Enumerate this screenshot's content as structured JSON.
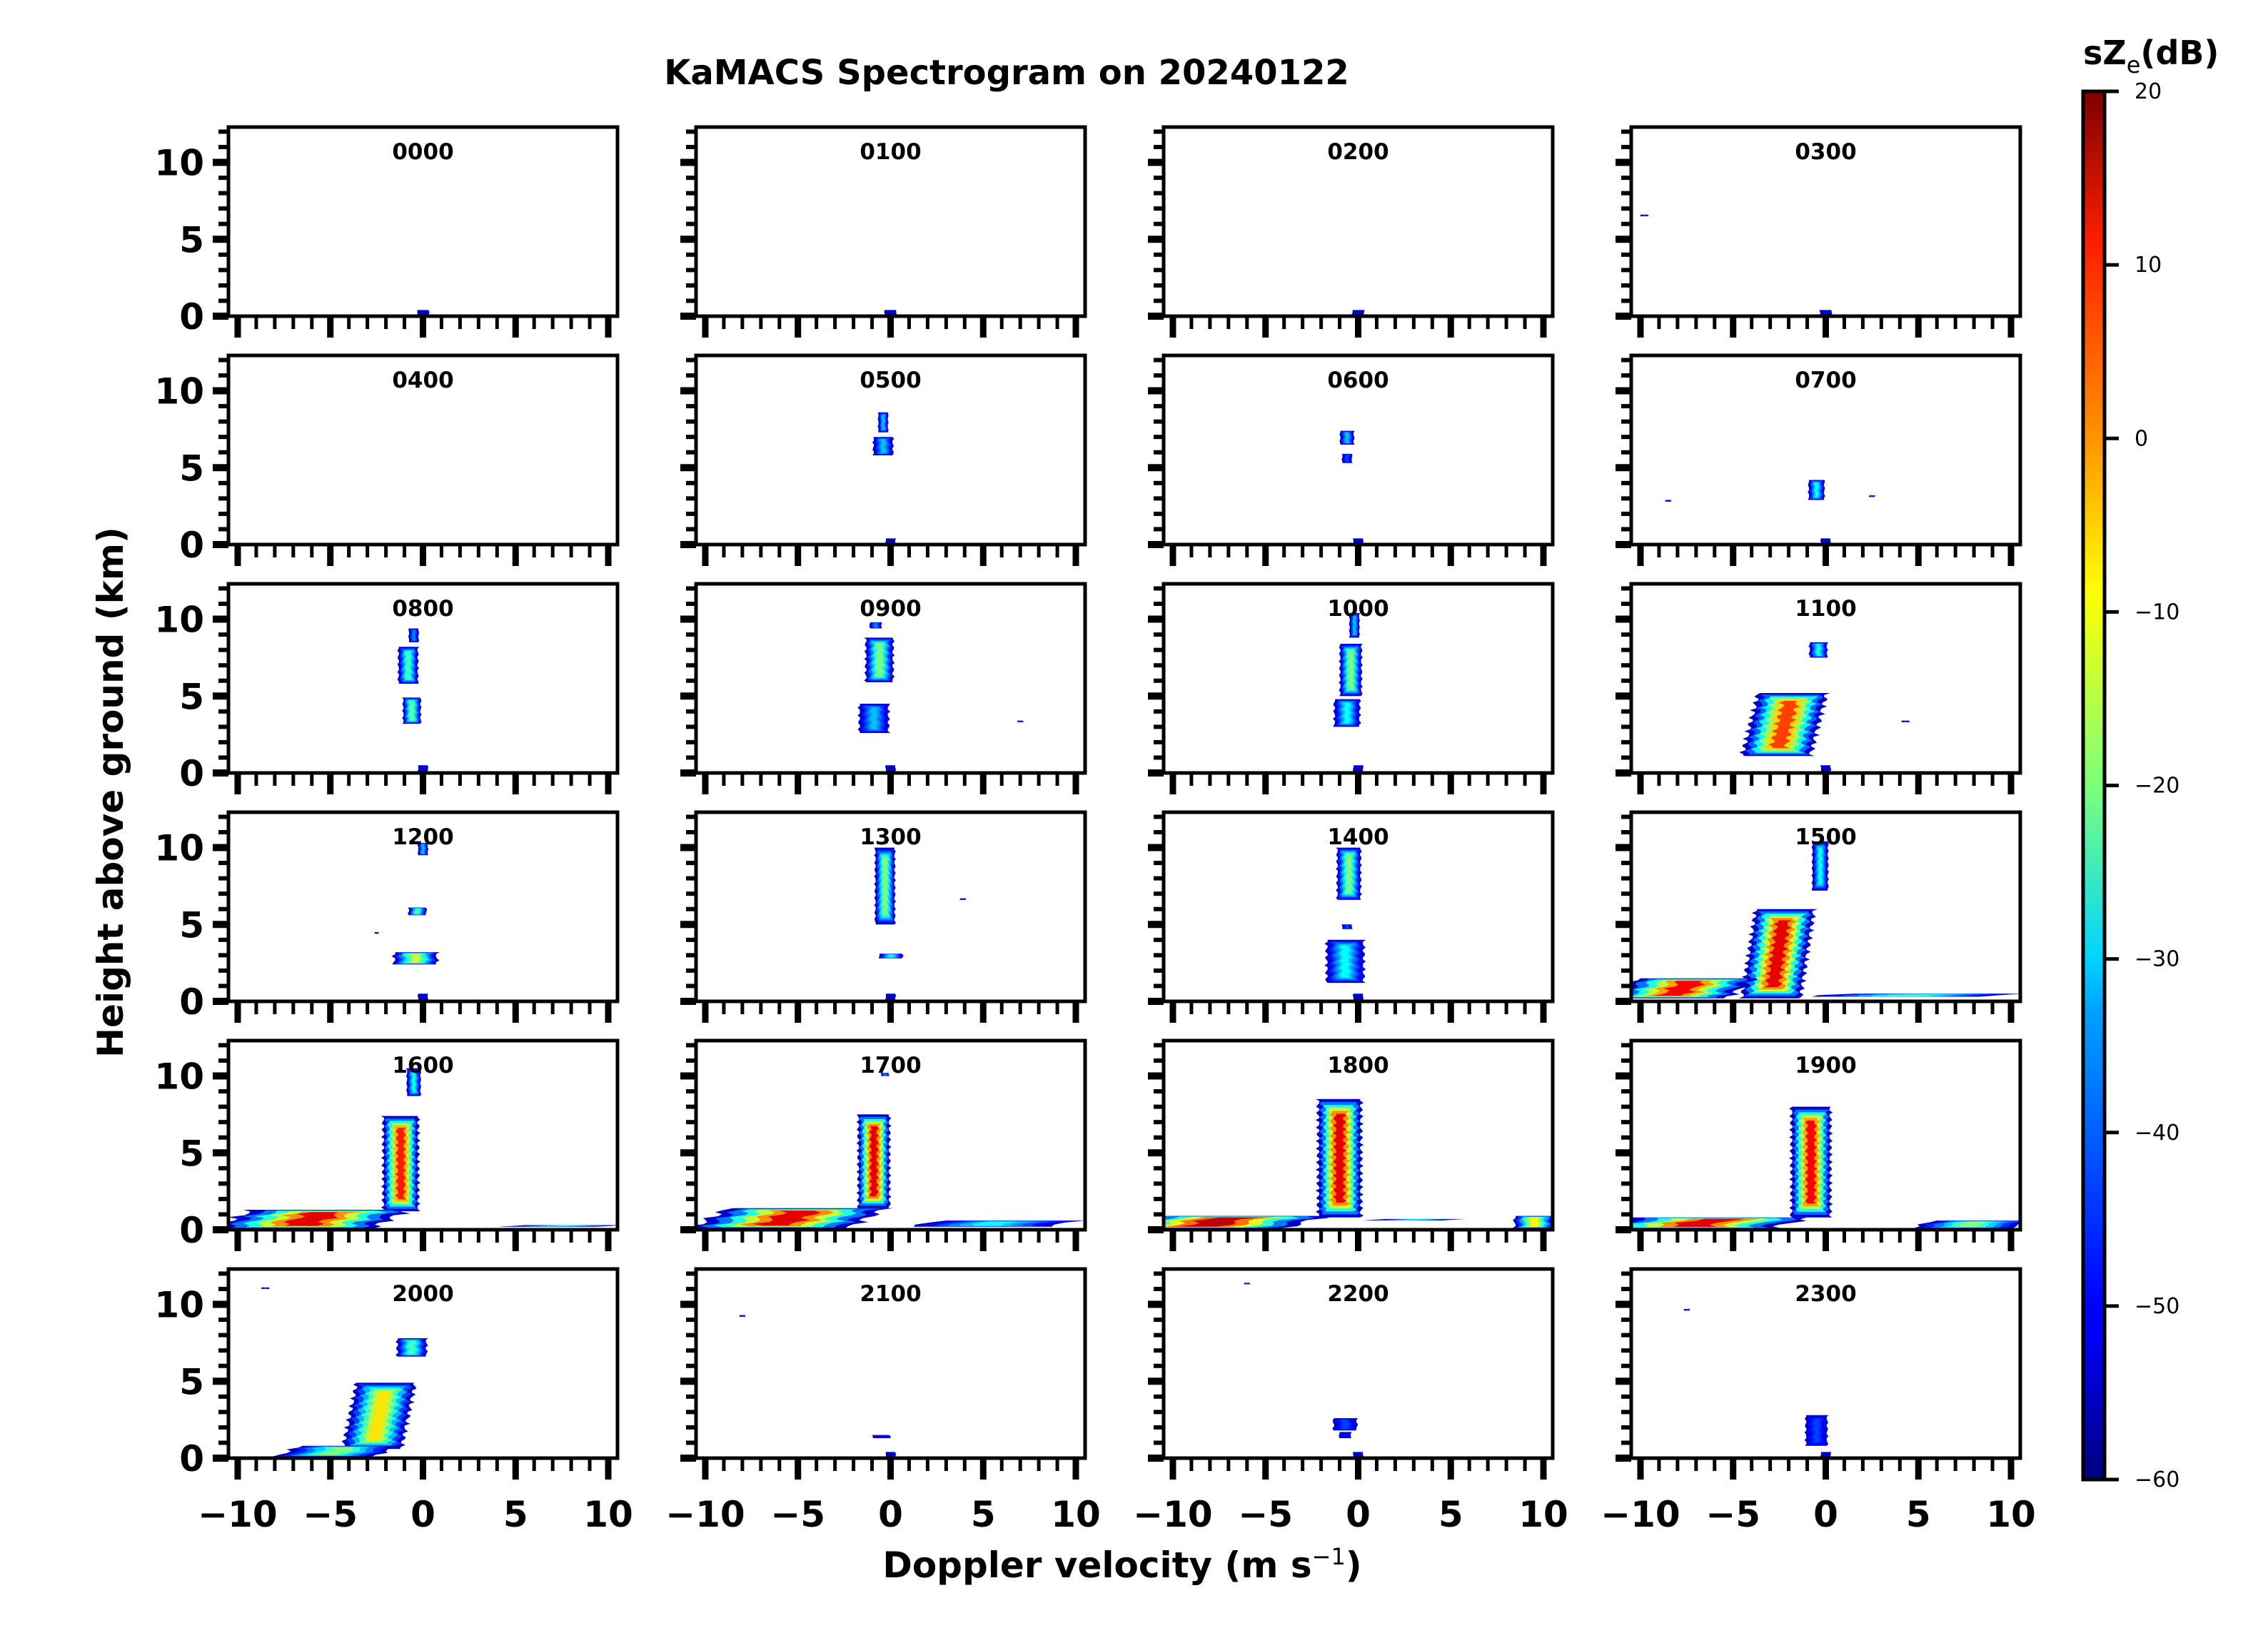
{
  "chart_data": {
    "type": "heatmap",
    "title": "KaMACS Spectrogram on 20240122",
    "xlabel": "Doppler velocity (m s⁻¹)",
    "xlabel_main": "Doppler velocity (m s",
    "xlabel_sup": "−1",
    "xlabel_close": ")",
    "ylabel": "Height above ground (km)",
    "xlim": [
      -10.5,
      10.5
    ],
    "ylim": [
      0,
      12.3
    ],
    "x_ticks": [
      -10,
      -5,
      0,
      5,
      10
    ],
    "x_tick_labels": [
      "−10",
      "−5",
      "0",
      "5",
      "10"
    ],
    "x_minor_step": 1,
    "y_ticks": [
      0,
      5,
      10
    ],
    "y_tick_labels": [
      "0",
      "5",
      "10"
    ],
    "y_minor_step": 1,
    "grid": false,
    "layout": {
      "rows": 6,
      "cols": 4
    },
    "colorbar": {
      "title_main": "sZ",
      "title_sub": "e",
      "title_unit": "(dB)",
      "colormap": "jet",
      "range": [
        -60,
        20
      ],
      "ticks": [
        20,
        10,
        0,
        -10,
        -20,
        -30,
        -40,
        -50,
        -60
      ],
      "tick_labels": [
        "20",
        "10",
        "0",
        "−10",
        "−20",
        "−30",
        "−40",
        "−50",
        "−60"
      ]
    },
    "panels": [
      {
        "time": "0000",
        "features": [
          {
            "h0": 0.1,
            "h1": 0.4,
            "v": 0,
            "w": 0.6,
            "dB": -55
          }
        ]
      },
      {
        "time": "0100",
        "features": [
          {
            "h0": 0.1,
            "h1": 0.4,
            "v": 0,
            "w": 0.6,
            "dB": -55
          }
        ]
      },
      {
        "time": "0200",
        "features": [
          {
            "h0": 0.1,
            "h1": 0.4,
            "v": 0,
            "w": 0.6,
            "dB": -55
          }
        ]
      },
      {
        "time": "0300",
        "features": [
          {
            "h0": 0.1,
            "h1": 0.4,
            "v": 0,
            "w": 0.6,
            "dB": -55
          },
          {
            "h0": 6.5,
            "h1": 6.6,
            "v": -9.8,
            "w": 0.4,
            "dB": -45
          }
        ]
      },
      {
        "time": "0400",
        "features": []
      },
      {
        "time": "0500",
        "features": [
          {
            "h0": 7.3,
            "h1": 8.6,
            "v": -0.4,
            "w": 0.5,
            "dB": -35
          },
          {
            "h0": 5.8,
            "h1": 7.0,
            "v": -0.4,
            "w": 1.0,
            "dB": -35
          },
          {
            "h0": 0.1,
            "h1": 0.4,
            "v": 0,
            "w": 0.5,
            "dB": -55
          }
        ]
      },
      {
        "time": "0600",
        "features": [
          {
            "h0": 6.5,
            "h1": 7.4,
            "v": -0.6,
            "w": 0.7,
            "dB": -35
          },
          {
            "h0": 5.3,
            "h1": 5.9,
            "v": -0.6,
            "w": 0.5,
            "dB": -45
          },
          {
            "h0": 0.1,
            "h1": 0.4,
            "v": 0,
            "w": 0.5,
            "dB": -55
          }
        ]
      },
      {
        "time": "0700",
        "features": [
          {
            "h0": 2.9,
            "h1": 4.2,
            "v": -0.5,
            "w": 0.8,
            "dB": -30
          },
          {
            "h0": 3.1,
            "h1": 3.2,
            "v": 2.5,
            "w": 0.3,
            "dB": -45
          },
          {
            "h0": 2.8,
            "h1": 2.9,
            "v": -8.5,
            "w": 0.3,
            "dB": -50
          },
          {
            "h0": 0.1,
            "h1": 0.4,
            "v": 0,
            "w": 0.5,
            "dB": -55
          }
        ]
      },
      {
        "time": "0800",
        "features": [
          {
            "h0": 5.8,
            "h1": 8.2,
            "v": -0.8,
            "w": 1.0,
            "dB": -25
          },
          {
            "h0": 8.5,
            "h1": 9.4,
            "v": -0.5,
            "w": 0.5,
            "dB": -40
          },
          {
            "h0": 3.2,
            "h1": 4.9,
            "v": -0.6,
            "w": 0.9,
            "dB": -22
          },
          {
            "h0": 0.1,
            "h1": 0.5,
            "v": 0,
            "w": 0.5,
            "dB": -55
          }
        ]
      },
      {
        "time": "0900",
        "features": [
          {
            "h0": 5.9,
            "h1": 8.8,
            "v": -0.6,
            "w": 1.4,
            "dB": -20
          },
          {
            "h0": 9.4,
            "h1": 9.8,
            "v": -0.8,
            "w": 0.6,
            "dB": -40
          },
          {
            "h0": 2.6,
            "h1": 4.5,
            "v": -0.9,
            "w": 1.5,
            "dB": -35
          },
          {
            "h0": 3.3,
            "h1": 3.4,
            "v": 7.0,
            "w": 0.3,
            "dB": -45
          },
          {
            "h0": 0.1,
            "h1": 0.5,
            "v": 0,
            "w": 0.5,
            "dB": -55
          }
        ]
      },
      {
        "time": "1000",
        "features": [
          {
            "h0": 5.0,
            "h1": 8.4,
            "v": -0.4,
            "w": 1.1,
            "dB": -20
          },
          {
            "h0": 8.8,
            "h1": 10.4,
            "v": -0.2,
            "w": 0.5,
            "dB": -35
          },
          {
            "h0": 3.0,
            "h1": 4.8,
            "v": -0.6,
            "w": 1.3,
            "dB": -30
          },
          {
            "h0": 0.1,
            "h1": 0.5,
            "v": 0,
            "w": 0.5,
            "dB": -55
          }
        ]
      },
      {
        "time": "1100",
        "features": [
          {
            "h0": 1.1,
            "h1": 5.2,
            "v": -1.8,
            "w": 3.5,
            "dB": 5
          },
          {
            "h0": 7.5,
            "h1": 8.5,
            "v": -0.4,
            "w": 0.9,
            "dB": -30
          },
          {
            "h0": 3.3,
            "h1": 3.4,
            "v": 4.3,
            "w": 0.4,
            "dB": -45
          },
          {
            "h0": 0.1,
            "h1": 0.5,
            "v": 0,
            "w": 0.5,
            "dB": -55
          }
        ]
      },
      {
        "time": "1200",
        "features": [
          {
            "h0": 2.4,
            "h1": 3.2,
            "v": -0.4,
            "w": 2.2,
            "dB": -15
          },
          {
            "h0": 5.6,
            "h1": 6.1,
            "v": -0.3,
            "w": 0.9,
            "dB": -25
          },
          {
            "h0": 9.5,
            "h1": 10.3,
            "v": 0,
            "w": 0.5,
            "dB": -35
          },
          {
            "h0": 4.4,
            "h1": 4.5,
            "v": -2.5,
            "w": 0.2,
            "dB": -55
          },
          {
            "h0": 0.1,
            "h1": 0.5,
            "v": 0,
            "w": 0.5,
            "dB": -55
          }
        ]
      },
      {
        "time": "1300",
        "features": [
          {
            "h0": 5.0,
            "h1": 10.0,
            "v": -0.3,
            "w": 1.0,
            "dB": -20
          },
          {
            "h0": 2.8,
            "h1": 3.1,
            "v": 0,
            "w": 1.2,
            "dB": -30
          },
          {
            "h0": 6.6,
            "h1": 6.7,
            "v": 3.9,
            "w": 0.3,
            "dB": -45
          },
          {
            "h0": 0.1,
            "h1": 0.5,
            "v": 0,
            "w": 0.5,
            "dB": -55
          }
        ]
      },
      {
        "time": "1400",
        "features": [
          {
            "h0": 6.6,
            "h1": 10.0,
            "v": -0.5,
            "w": 1.2,
            "dB": -20
          },
          {
            "h0": 1.2,
            "h1": 4.0,
            "v": -0.7,
            "w": 1.9,
            "dB": -30
          },
          {
            "h0": 4.7,
            "h1": 5.0,
            "v": -0.6,
            "w": 0.5,
            "dB": -45
          },
          {
            "h0": 0.1,
            "h1": 0.5,
            "v": 0,
            "w": 0.5,
            "dB": -55
          }
        ]
      },
      {
        "time": "1500",
        "features": [
          {
            "h0": 0.2,
            "h1": 6.0,
            "v": -2.2,
            "w": 3.0,
            "dB": 12
          },
          {
            "h0": 0.2,
            "h1": 1.5,
            "v": -7.0,
            "w": 6.0,
            "dB": 10
          },
          {
            "h0": 7.2,
            "h1": 10.4,
            "v": -0.3,
            "w": 0.8,
            "dB": -30
          },
          {
            "h0": 0.3,
            "h1": 0.5,
            "v": 6.0,
            "w": 9.0,
            "dB": -25
          }
        ]
      },
      {
        "time": "1600",
        "features": [
          {
            "h0": 1.2,
            "h1": 7.4,
            "v": -1.2,
            "w": 1.8,
            "dB": 8
          },
          {
            "h0": 0.1,
            "h1": 1.3,
            "v": -5.0,
            "w": 8.0,
            "dB": 12
          },
          {
            "h0": 8.7,
            "h1": 10.5,
            "v": -0.5,
            "w": 0.7,
            "dB": -30
          },
          {
            "h0": 0.2,
            "h1": 0.3,
            "v": 8.0,
            "w": 5.0,
            "dB": -30
          }
        ]
      },
      {
        "time": "1700",
        "features": [
          {
            "h0": 1.4,
            "h1": 7.5,
            "v": -0.9,
            "w": 1.6,
            "dB": 12
          },
          {
            "h0": 0.1,
            "h1": 1.4,
            "v": -4.5,
            "w": 8.0,
            "dB": 12
          },
          {
            "h0": 0.2,
            "h1": 0.6,
            "v": 6.5,
            "w": 7.0,
            "dB": -30
          },
          {
            "h0": 10.0,
            "h1": 10.2,
            "v": -0.3,
            "w": 0.4,
            "dB": -40
          }
        ]
      },
      {
        "time": "1800",
        "features": [
          {
            "h0": 0.8,
            "h1": 8.5,
            "v": -1.0,
            "w": 2.2,
            "dB": 12
          },
          {
            "h0": 0.1,
            "h1": 0.9,
            "v": -6.5,
            "w": 9.0,
            "dB": 15
          },
          {
            "h0": 0.1,
            "h1": 0.9,
            "v": 9.5,
            "w": 2.0,
            "dB": -10
          },
          {
            "h0": 0.6,
            "h1": 0.7,
            "v": 3.5,
            "w": 4.0,
            "dB": -30
          }
        ]
      },
      {
        "time": "1900",
        "features": [
          {
            "h0": 0.8,
            "h1": 8.0,
            "v": -0.8,
            "w": 2.0,
            "dB": 10
          },
          {
            "h0": 0.1,
            "h1": 0.8,
            "v": -5.5,
            "w": 9.0,
            "dB": 12
          },
          {
            "h0": 0.1,
            "h1": 0.6,
            "v": 8.5,
            "w": 5.0,
            "dB": -20
          }
        ]
      },
      {
        "time": "2000",
        "features": [
          {
            "h0": 0.6,
            "h1": 4.9,
            "v": -2.0,
            "w": 3.0,
            "dB": -8
          },
          {
            "h0": 0.1,
            "h1": 0.8,
            "v": -4.0,
            "w": 5.0,
            "dB": -20
          },
          {
            "h0": 6.6,
            "h1": 7.8,
            "v": -0.6,
            "w": 1.5,
            "dB": -25
          },
          {
            "h0": 11.0,
            "h1": 11.1,
            "v": -8.5,
            "w": 0.4,
            "dB": -45
          }
        ]
      },
      {
        "time": "2100",
        "features": [
          {
            "h0": 1.3,
            "h1": 1.5,
            "v": -0.5,
            "w": 0.9,
            "dB": -50
          },
          {
            "h0": 0.1,
            "h1": 0.4,
            "v": 0,
            "w": 0.5,
            "dB": -55
          },
          {
            "h0": 9.2,
            "h1": 9.3,
            "v": -8.0,
            "w": 0.3,
            "dB": -45
          }
        ]
      },
      {
        "time": "2200",
        "features": [
          {
            "h0": 1.8,
            "h1": 2.6,
            "v": -0.7,
            "w": 1.2,
            "dB": -45
          },
          {
            "h0": 1.3,
            "h1": 1.7,
            "v": -0.7,
            "w": 0.6,
            "dB": -50
          },
          {
            "h0": 0.1,
            "h1": 0.4,
            "v": 0,
            "w": 0.5,
            "dB": -55
          },
          {
            "h0": 11.3,
            "h1": 11.4,
            "v": -6.0,
            "w": 0.3,
            "dB": -45
          }
        ]
      },
      {
        "time": "2300",
        "features": [
          {
            "h0": 0.8,
            "h1": 2.8,
            "v": -0.5,
            "w": 1.1,
            "dB": -45
          },
          {
            "h0": 0.1,
            "h1": 0.4,
            "v": 0,
            "w": 0.5,
            "dB": -55
          },
          {
            "h0": 9.6,
            "h1": 9.7,
            "v": -7.5,
            "w": 0.3,
            "dB": -45
          }
        ]
      }
    ]
  }
}
